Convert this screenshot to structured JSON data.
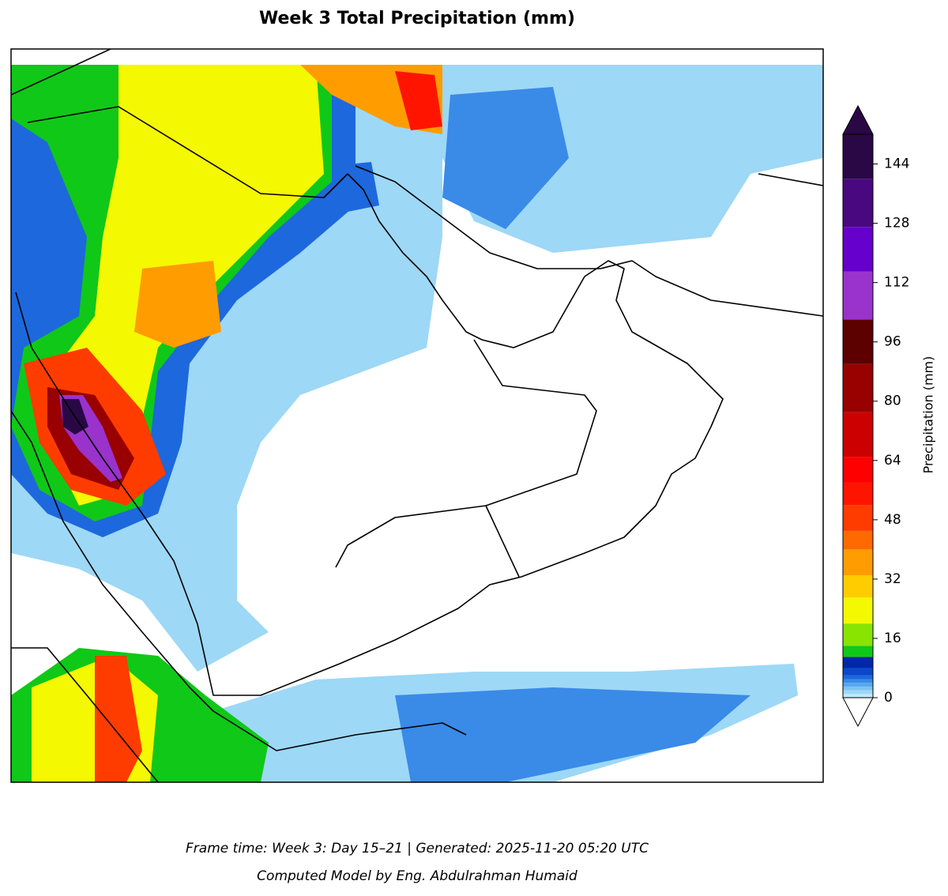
{
  "title": "Week 3 Total Precipitation (mm)",
  "colorbar": {
    "label": "Precipitation (mm)",
    "ylim": [
      0,
      152
    ],
    "ticks": [
      0,
      16,
      32,
      48,
      64,
      80,
      96,
      112,
      128,
      144
    ],
    "levels": [
      0,
      1,
      2,
      3,
      4,
      5,
      6,
      8,
      11,
      14,
      20,
      27,
      33,
      40,
      45,
      52,
      58,
      65,
      77,
      90,
      102,
      115,
      127,
      140,
      152
    ],
    "colors": [
      "#bfe8fb",
      "#9dd8f6",
      "#7cc4f2",
      "#55a8ee",
      "#3a8ae8",
      "#1d68dc",
      "#0a48cc",
      "#0028a8",
      "#10c818",
      "#88e400",
      "#f4f800",
      "#ffcc00",
      "#ff9c00",
      "#ff6a00",
      "#ff3c00",
      "#ff1400",
      "#ff0000",
      "#cc0000",
      "#990000",
      "#5c0000",
      "#9933cc",
      "#6600cc",
      "#4a0880",
      "#2a0845"
    ],
    "under_color": "#ffffff",
    "over_color": "#2a0845"
  },
  "footer": [
    "Frame time: Week 3: Day 15–21 | Generated: 2025-11-20 05:20 UTC",
    "Computed Model by Eng. Abdulrahman Humaid"
  ]
}
